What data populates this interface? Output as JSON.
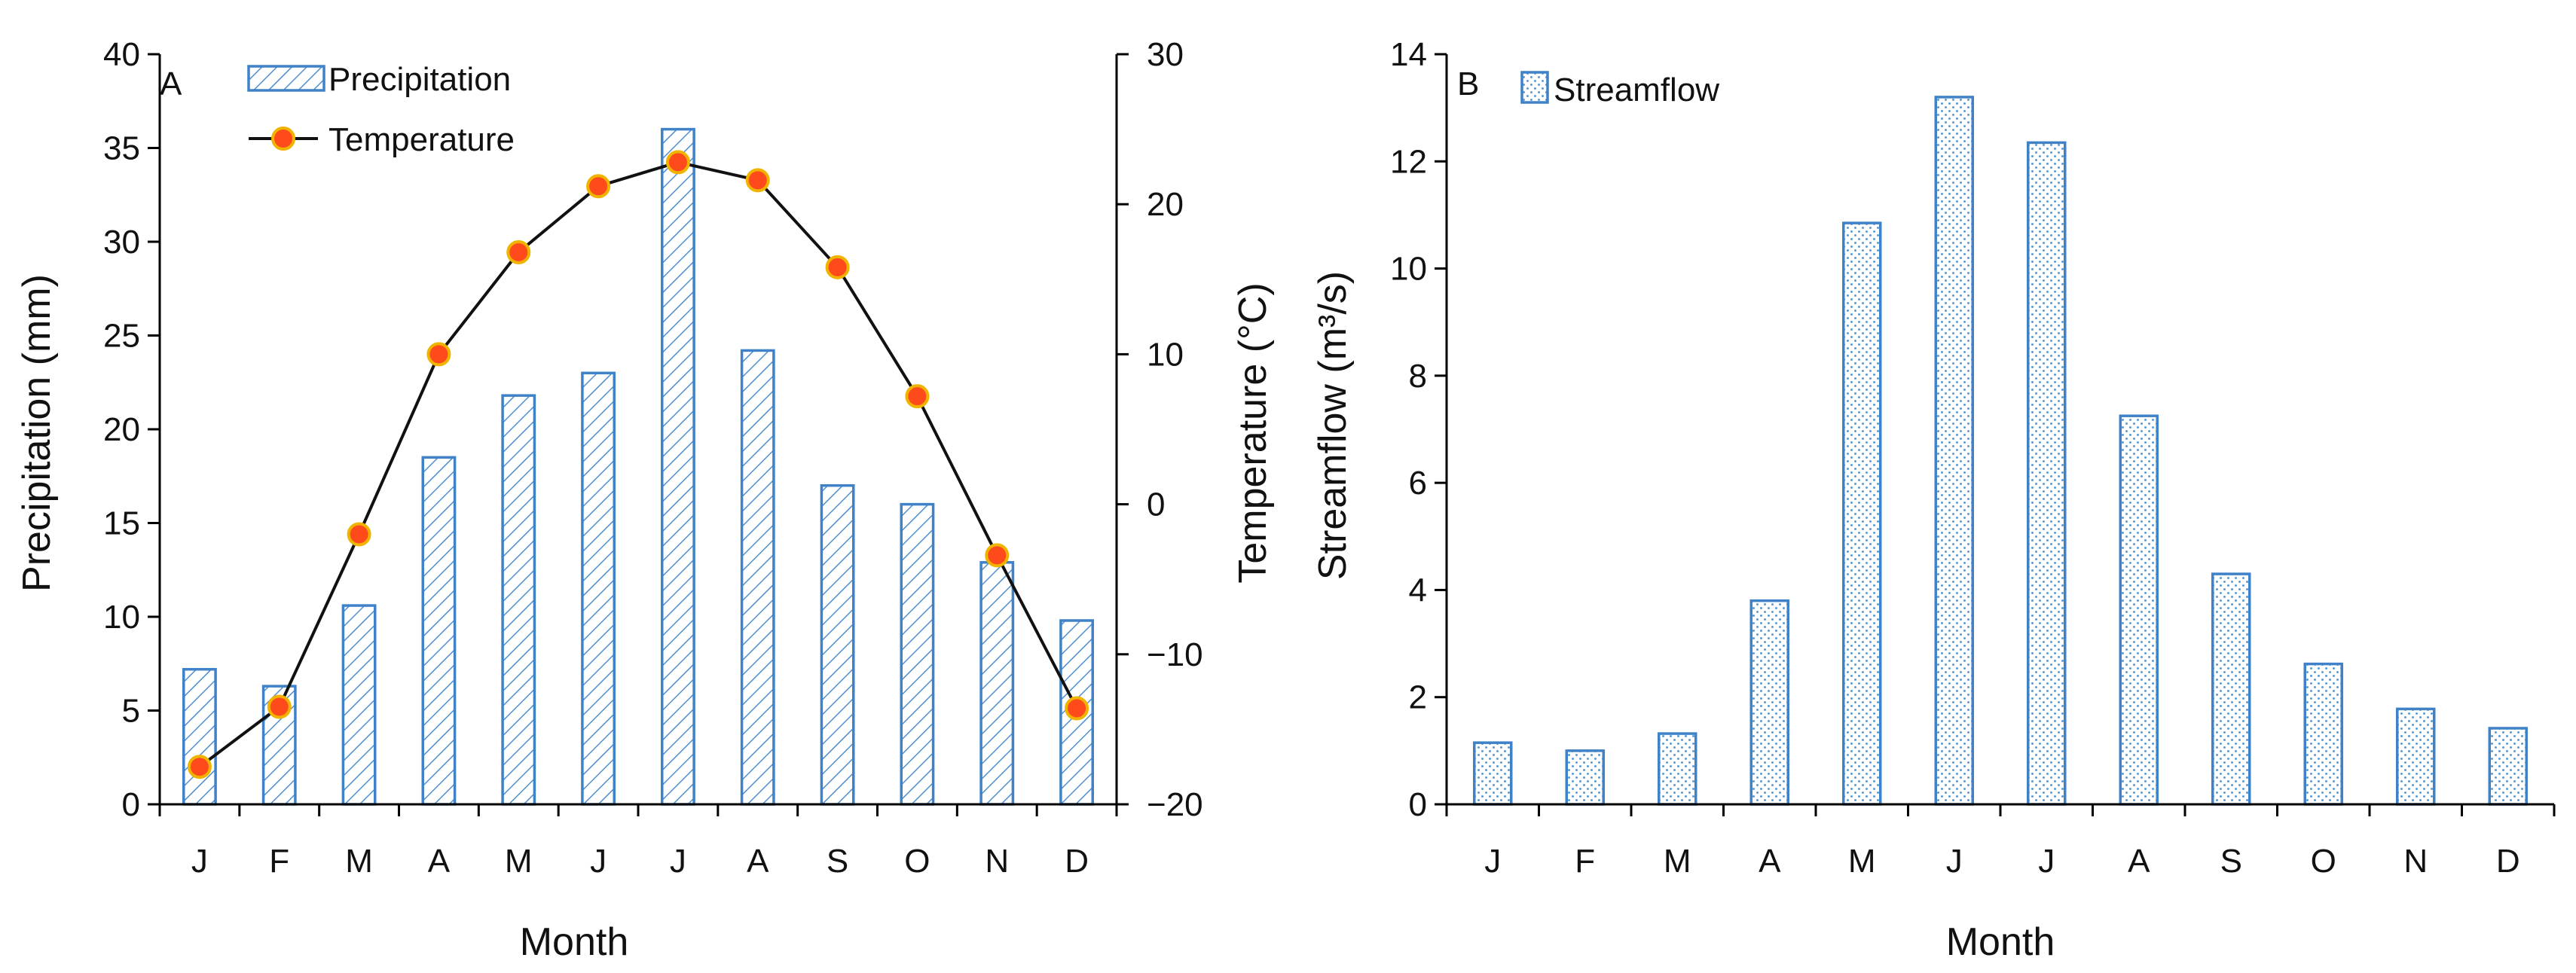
{
  "chart_data": [
    {
      "type": "bar",
      "panel_label": "A",
      "categories": [
        "J",
        "F",
        "M",
        "A",
        "M",
        "J",
        "J",
        "A",
        "S",
        "O",
        "N",
        "D"
      ],
      "xlabel": "Month",
      "ylabel": "Precipitation (mm)",
      "y2label": "Temperature (°C)",
      "ylim": [
        0,
        40
      ],
      "yticks": [
        0,
        5,
        10,
        15,
        20,
        25,
        30,
        35,
        40
      ],
      "y2lim": [
        -20,
        30
      ],
      "y2ticks": [
        -20,
        -10,
        0,
        10,
        20,
        30
      ],
      "legend_position": "top-left",
      "series": [
        {
          "name": "Precipitation",
          "kind": "bar",
          "axis": "left",
          "values": [
            7.2,
            6.3,
            10.6,
            18.5,
            21.8,
            23.0,
            36.0,
            24.2,
            17.0,
            16.0,
            12.9,
            9.8
          ]
        },
        {
          "name": "Temperature",
          "kind": "line",
          "axis": "right",
          "values": [
            -17.5,
            -13.5,
            -2.0,
            10.0,
            16.8,
            21.2,
            22.8,
            21.6,
            15.8,
            7.2,
            -3.4,
            -13.6
          ]
        }
      ]
    },
    {
      "type": "bar",
      "panel_label": "B",
      "categories": [
        "J",
        "F",
        "M",
        "A",
        "M",
        "J",
        "J",
        "A",
        "S",
        "O",
        "N",
        "D"
      ],
      "xlabel": "Month",
      "ylabel": "Streamflow (m³/s)",
      "ylim": [
        0,
        14
      ],
      "yticks": [
        0,
        2,
        4,
        6,
        8,
        10,
        12,
        14
      ],
      "legend_position": "top-left",
      "series": [
        {
          "name": "Streamflow",
          "kind": "bar",
          "axis": "left",
          "values": [
            1.15,
            1.0,
            1.32,
            3.8,
            10.85,
            13.2,
            12.35,
            7.25,
            4.3,
            2.62,
            1.78,
            1.42
          ]
        }
      ]
    }
  ],
  "colors": {
    "bar_stroke": "#3f82c7",
    "hatch": "#4f8fcf",
    "dots": "#5b9bd5",
    "marker_fill": "#ff4a1c",
    "marker_edge": "#f0b400",
    "line": "#111111"
  }
}
